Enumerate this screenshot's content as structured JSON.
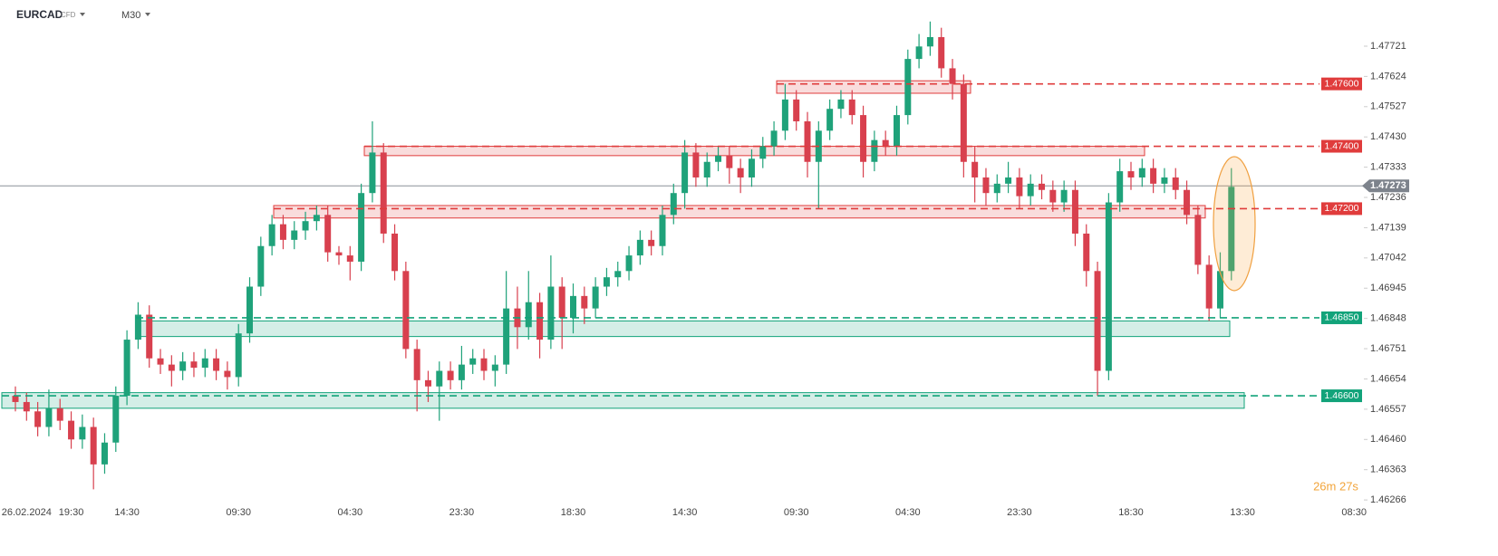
{
  "chart_data": {
    "type": "candlestick",
    "symbol": "EURCAD",
    "instrument_type": "CFD",
    "timeframe": "M30",
    "timer": "26m 27s",
    "up_color": "#1fa27a",
    "down_color": "#d8404e",
    "categories": [
      null,
      "26.02.2024",
      null,
      null,
      null,
      "19:30",
      null,
      null,
      null,
      null,
      "14:30",
      null,
      null,
      null,
      null,
      null,
      null,
      null,
      null,
      null,
      "09:30",
      null,
      null,
      null,
      null,
      null,
      null,
      null,
      null,
      null,
      "04:30",
      null,
      null,
      null,
      null,
      null,
      null,
      null,
      null,
      null,
      "23:30",
      null,
      null,
      null,
      null,
      null,
      null,
      null,
      null,
      null,
      "18:30",
      null,
      null,
      null,
      null,
      null,
      null,
      null,
      null,
      null,
      "14:30",
      null,
      null,
      null,
      null,
      null,
      null,
      null,
      null,
      null,
      "09:30",
      null,
      null,
      null,
      null,
      null,
      null,
      null,
      null,
      null,
      "04:30",
      null,
      null,
      null,
      null,
      null,
      null,
      null,
      null,
      null,
      "23:30",
      null,
      null,
      null,
      null,
      null,
      null,
      null,
      null,
      null,
      "18:30",
      null,
      null,
      null,
      null,
      null,
      null,
      null,
      null,
      null,
      "13:30",
      null,
      null,
      null,
      null,
      null,
      null,
      null,
      null,
      null,
      "08:30"
    ],
    "open": [
      1.466,
      1.4658,
      1.4655,
      1.465,
      1.4656,
      1.4652,
      1.4646,
      1.465,
      1.4638,
      1.4645,
      1.466,
      1.4678,
      1.4686,
      1.4672,
      1.467,
      1.4668,
      1.4671,
      1.4669,
      1.4672,
      1.4668,
      1.4666,
      1.468,
      1.4695,
      1.4708,
      1.4715,
      1.471,
      1.4713,
      1.4716,
      1.4718,
      1.4706,
      1.4705,
      1.4703,
      1.4725,
      1.4738,
      1.4712,
      1.47,
      1.4675,
      1.4665,
      1.4663,
      1.4668,
      1.4665,
      1.467,
      1.4672,
      1.4668,
      1.467,
      1.4688,
      1.4682,
      1.469,
      1.4678,
      1.4695,
      1.4685,
      1.4692,
      1.4688,
      1.4695,
      1.4698,
      1.47,
      1.4705,
      1.471,
      1.4708,
      1.4718,
      1.4725,
      1.4738,
      1.473,
      1.4735,
      1.4737,
      1.4733,
      1.473,
      1.4736,
      1.474,
      1.4745,
      1.4755,
      1.4748,
      1.4735,
      1.4745,
      1.4752,
      1.4755,
      1.475,
      1.4735,
      1.4742,
      1.474,
      1.475,
      1.4768,
      1.4772,
      1.4775,
      1.4765,
      1.476,
      1.4735,
      1.473,
      1.4725,
      1.4728,
      1.473,
      1.4724,
      1.4728,
      1.4726,
      1.4722,
      1.4726,
      1.4712,
      1.47,
      1.4668,
      1.4722,
      1.4732,
      1.473,
      1.4733,
      1.4728,
      1.473,
      1.4726,
      1.4718,
      1.4702,
      1.4688,
      1.47,
      null,
      null,
      null,
      null,
      null,
      null,
      null,
      null,
      null,
      null,
      null
    ],
    "high": [
      1.4663,
      1.4661,
      1.4658,
      1.4662,
      1.4659,
      1.4655,
      1.4654,
      1.4653,
      1.4648,
      1.4663,
      1.4681,
      1.469,
      1.4689,
      1.4675,
      1.4673,
      1.4674,
      1.4674,
      1.4675,
      1.4675,
      1.4671,
      1.4683,
      1.4698,
      1.4711,
      1.4718,
      1.4718,
      1.4716,
      1.4719,
      1.4721,
      1.4721,
      1.4708,
      1.4708,
      1.4728,
      1.4748,
      1.4741,
      1.4715,
      1.4703,
      1.4678,
      1.4668,
      1.4671,
      1.4671,
      1.4676,
      1.4675,
      1.4675,
      1.4673,
      1.47,
      1.4695,
      1.47,
      1.4693,
      1.4705,
      1.4698,
      1.4696,
      1.4695,
      1.4698,
      1.4701,
      1.4703,
      1.4708,
      1.4713,
      1.4713,
      1.4721,
      1.4728,
      1.4742,
      1.4741,
      1.4738,
      1.474,
      1.474,
      1.4736,
      1.4739,
      1.4743,
      1.4748,
      1.476,
      1.4758,
      1.4751,
      1.4748,
      1.4755,
      1.4758,
      1.4758,
      1.4753,
      1.4745,
      1.4745,
      1.4753,
      1.4771,
      1.4776,
      1.478,
      1.4778,
      1.4768,
      1.4763,
      1.474,
      1.4733,
      1.4731,
      1.4735,
      1.4733,
      1.4731,
      1.4731,
      1.4729,
      1.4729,
      1.4729,
      1.4715,
      1.4703,
      1.4725,
      1.4736,
      1.4735,
      1.4736,
      1.4736,
      1.4733,
      1.4733,
      1.4729,
      1.4721,
      1.4705,
      1.4706,
      1.4733,
      null,
      null,
      null,
      null,
      null,
      null,
      null,
      null,
      null,
      null,
      null
    ],
    "low": [
      1.4655,
      1.4652,
      1.4647,
      1.4647,
      1.4649,
      1.4643,
      1.4643,
      1.463,
      1.4635,
      1.4642,
      1.4657,
      1.4675,
      1.4669,
      1.4667,
      1.4663,
      1.4665,
      1.4666,
      1.4666,
      1.4665,
      1.4662,
      1.4663,
      1.4677,
      1.4692,
      1.4705,
      1.4707,
      1.4707,
      1.471,
      1.4713,
      1.4703,
      1.4702,
      1.4697,
      1.47,
      1.4722,
      1.4709,
      1.4697,
      1.4672,
      1.4655,
      1.4658,
      1.4652,
      1.4662,
      1.4662,
      1.4667,
      1.4665,
      1.4663,
      1.4667,
      1.4675,
      1.4678,
      1.4672,
      1.4675,
      1.4675,
      1.468,
      1.4683,
      1.4685,
      1.4692,
      1.4695,
      1.4697,
      1.4702,
      1.4705,
      1.4705,
      1.4715,
      1.472,
      1.4727,
      1.4727,
      1.4732,
      1.4728,
      1.4725,
      1.4727,
      1.4733,
      1.4737,
      1.4742,
      1.4745,
      1.473,
      1.472,
      1.4742,
      1.4749,
      1.4747,
      1.473,
      1.4732,
      1.4737,
      1.4737,
      1.4747,
      1.4765,
      1.4769,
      1.4762,
      1.4755,
      1.473,
      1.4722,
      1.4721,
      1.4722,
      1.4725,
      1.472,
      1.4721,
      1.4723,
      1.4719,
      1.4719,
      1.4708,
      1.4695,
      1.466,
      1.4665,
      1.4719,
      1.4726,
      1.4727,
      1.4725,
      1.4725,
      1.4723,
      1.4715,
      1.4699,
      1.4684,
      1.4685,
      1.4697,
      null,
      null,
      null,
      null,
      null,
      null,
      null,
      null,
      null,
      null,
      null
    ],
    "close": [
      1.4658,
      1.4655,
      1.465,
      1.4656,
      1.4652,
      1.4646,
      1.465,
      1.4638,
      1.4645,
      1.466,
      1.4678,
      1.4686,
      1.4672,
      1.467,
      1.4668,
      1.4671,
      1.4669,
      1.4672,
      1.4668,
      1.4666,
      1.468,
      1.4695,
      1.4708,
      1.4715,
      1.471,
      1.4713,
      1.4716,
      1.4718,
      1.4706,
      1.4705,
      1.4703,
      1.4725,
      1.4738,
      1.4712,
      1.47,
      1.4675,
      1.4665,
      1.4663,
      1.4668,
      1.4665,
      1.467,
      1.4672,
      1.4668,
      1.467,
      1.4688,
      1.4682,
      1.469,
      1.4678,
      1.4695,
      1.4685,
      1.4692,
      1.4688,
      1.4695,
      1.4698,
      1.47,
      1.4705,
      1.471,
      1.4708,
      1.4718,
      1.4725,
      1.4738,
      1.473,
      1.4735,
      1.4737,
      1.4733,
      1.473,
      1.4736,
      1.474,
      1.4745,
      1.4755,
      1.4748,
      1.4735,
      1.4745,
      1.4752,
      1.4755,
      1.475,
      1.4735,
      1.4742,
      1.474,
      1.475,
      1.4768,
      1.4772,
      1.4775,
      1.4765,
      1.476,
      1.4735,
      1.473,
      1.4725,
      1.4728,
      1.473,
      1.4724,
      1.4728,
      1.4726,
      1.4722,
      1.4726,
      1.4712,
      1.47,
      1.4668,
      1.4722,
      1.4732,
      1.473,
      1.4733,
      1.4728,
      1.473,
      1.4726,
      1.4718,
      1.4702,
      1.4688,
      1.47,
      1.4727,
      null,
      null,
      null,
      null,
      null,
      null,
      null,
      null,
      null,
      null,
      null
    ],
    "ylim": [
      1.46185,
      1.47869
    ],
    "yticks": [
      1.47721,
      1.47624,
      1.47527,
      {
        "value": 1.4743,
        "label": "1.47430"
      },
      1.47333,
      1.47236,
      1.47139,
      1.47042,
      1.46945,
      1.46848,
      1.46751,
      1.46654,
      1.46557,
      {
        "value": 1.4646,
        "label": "1.46460"
      },
      1.46363,
      1.46266
    ],
    "grid": false,
    "last_price": 1.47273,
    "levels": [
      {
        "value": 1.476,
        "label": "1.47600",
        "color": "#e03c3c",
        "zone": [
          1.4757,
          1.4761
        ]
      },
      {
        "value": 1.474,
        "label": "1.47400",
        "color": "#e03c3c",
        "zone": [
          1.4737,
          1.474
        ]
      },
      {
        "value": 1.472,
        "label": "1.47200",
        "color": "#e03c3c",
        "zone": [
          1.4717,
          1.4721
        ]
      },
      {
        "value": 1.4685,
        "label": "1.46850",
        "color": "#12a37a",
        "zone": [
          1.4679,
          1.4684
        ]
      },
      {
        "value": 1.466,
        "label": "1.46600",
        "color": "#12a37a",
        "zone": [
          1.4656,
          1.4661
        ]
      }
    ]
  }
}
